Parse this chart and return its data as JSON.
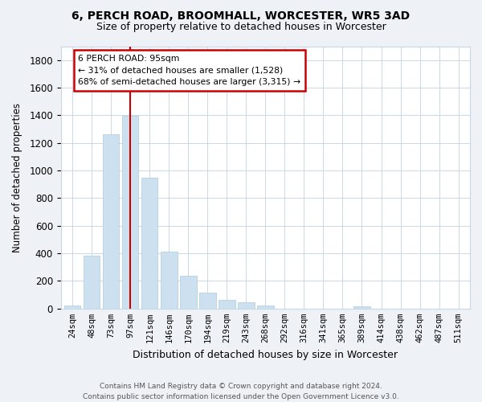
{
  "title1": "6, PERCH ROAD, BROOMHALL, WORCESTER, WR5 3AD",
  "title2": "Size of property relative to detached houses in Worcester",
  "xlabel": "Distribution of detached houses by size in Worcester",
  "ylabel": "Number of detached properties",
  "categories": [
    "24sqm",
    "48sqm",
    "73sqm",
    "97sqm",
    "121sqm",
    "146sqm",
    "170sqm",
    "194sqm",
    "219sqm",
    "243sqm",
    "268sqm",
    "292sqm",
    "316sqm",
    "341sqm",
    "365sqm",
    "389sqm",
    "414sqm",
    "438sqm",
    "462sqm",
    "487sqm",
    "511sqm"
  ],
  "values": [
    25,
    385,
    1260,
    1395,
    950,
    410,
    235,
    115,
    65,
    45,
    20,
    0,
    0,
    0,
    0,
    15,
    0,
    0,
    0,
    0,
    0
  ],
  "bar_color": "#cce0f0",
  "bar_edge_color": "#aaccdd",
  "vline_x_index": 3,
  "vline_color": "#cc0000",
  "annotation_text": "6 PERCH ROAD: 95sqm\n← 31% of detached houses are smaller (1,528)\n68% of semi-detached houses are larger (3,315) →",
  "annotation_box_color": "#ffffff",
  "annotation_box_edge_color": "#cc0000",
  "ylim": [
    0,
    1900
  ],
  "yticks": [
    0,
    200,
    400,
    600,
    800,
    1000,
    1200,
    1400,
    1600,
    1800
  ],
  "footer": "Contains HM Land Registry data © Crown copyright and database right 2024.\nContains public sector information licensed under the Open Government Licence v3.0.",
  "bg_color": "#eef2f7",
  "plot_bg_color": "#ffffff",
  "grid_color": "#c8d8e8"
}
